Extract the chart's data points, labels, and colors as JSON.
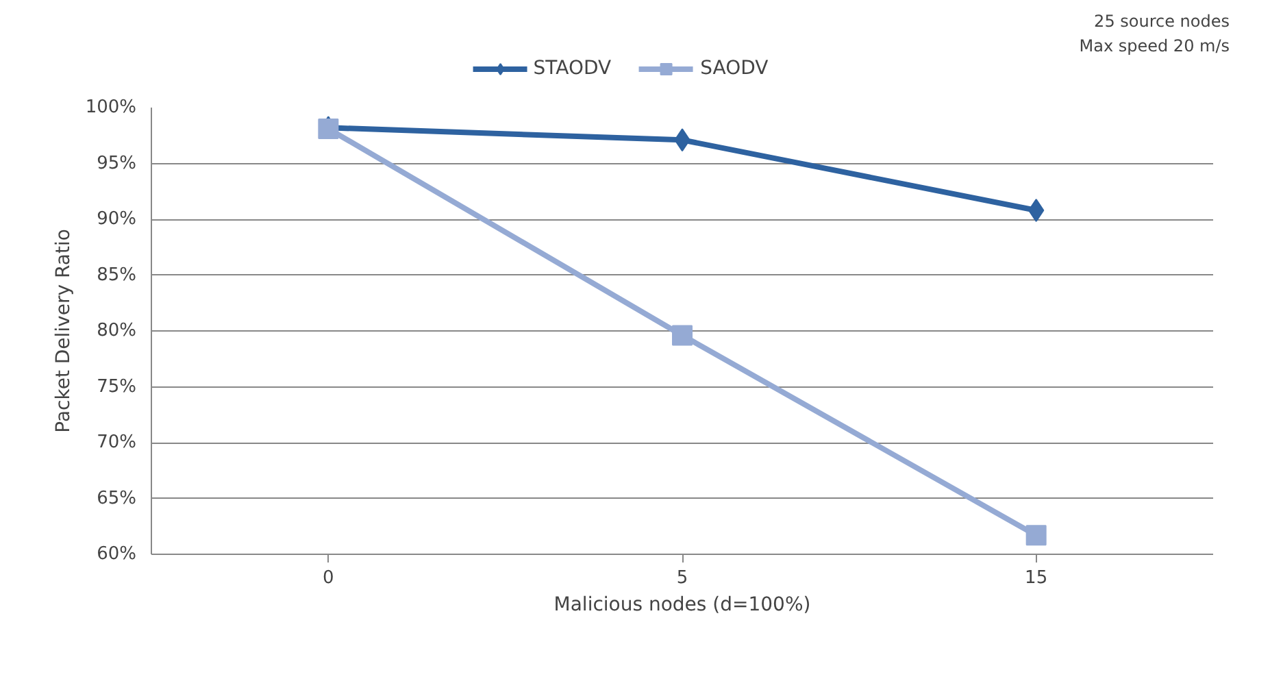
{
  "chart_data": {
    "type": "line",
    "xlabel": "Malicious nodes (d=100%)",
    "ylabel": "Packet Delivery Ratio",
    "categories": [
      "0",
      "5",
      "15"
    ],
    "series": [
      {
        "name": "STAODV",
        "color": "#2e62a0",
        "values": [
          98.2,
          97.1,
          90.8
        ],
        "marker": "diamond"
      },
      {
        "name": "SAODV",
        "color": "#95aad4",
        "values": [
          98.1,
          79.6,
          61.7
        ],
        "marker": "square"
      }
    ],
    "ylim": [
      60,
      100
    ],
    "yticks": [
      {
        "value": 60,
        "label": "60%"
      },
      {
        "value": 65,
        "label": "65%"
      },
      {
        "value": 70,
        "label": "70%"
      },
      {
        "value": 75,
        "label": "75%"
      },
      {
        "value": 80,
        "label": "80%"
      },
      {
        "value": 85,
        "label": "85%"
      },
      {
        "value": 90,
        "label": "90%"
      },
      {
        "value": 95,
        "label": "95%"
      },
      {
        "value": 100,
        "label": "100%"
      }
    ],
    "grid": "y",
    "legend": "top",
    "line_style": "solid",
    "annotations": [
      "25 source nodes",
      "Max speed 20 m/s"
    ]
  }
}
